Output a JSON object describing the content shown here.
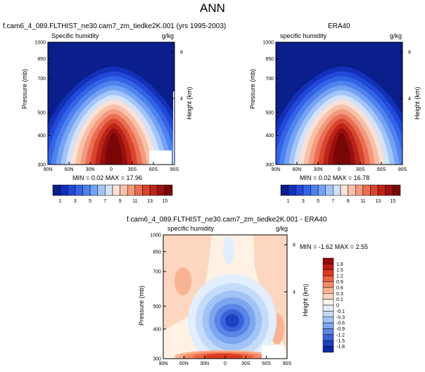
{
  "page_title": "ANN",
  "chart_data": [
    {
      "type": "heatmap",
      "title": "f.cam6_4_089.FLTHIST_ne30.cam7_zm_tiedke2K.001 (yrs 1995-2003)",
      "variable": "Specific humidity",
      "units": "g/kg",
      "stats": "MIN =  0.02  MAX = 17.96",
      "min": 0.02,
      "max": 17.96,
      "xticks": [
        "90N",
        "60N",
        "30N",
        "0",
        "30S",
        "60S",
        "90S"
      ],
      "xlim": [
        90,
        -90
      ],
      "yticks": [
        "300",
        "400",
        "500",
        "700",
        "850",
        "1000"
      ],
      "ylim": [
        1000,
        300
      ],
      "ylabel": "Pressure (mb)",
      "y2label": "Height (km)",
      "y2ticks": [
        "8",
        "4"
      ],
      "colorbar": {
        "labels": [
          "1",
          "3",
          "5",
          "7",
          "9",
          "11",
          "13",
          "15"
        ]
      }
    },
    {
      "type": "heatmap",
      "title": "ERA40",
      "variable": "specific humidity",
      "units": "g/kg",
      "stats": "MIN =  0.02  MAX = 16.78",
      "min": 0.02,
      "max": 16.78,
      "xticks": [
        "90N",
        "60N",
        "30N",
        "0",
        "30S",
        "60S",
        "90S"
      ],
      "xlim": [
        90,
        -90
      ],
      "yticks": [
        "300",
        "400",
        "500",
        "700",
        "850",
        "1000"
      ],
      "ylim": [
        1000,
        300
      ],
      "ylabel": "Pressure (mb)",
      "y2label": "Height (km)",
      "y2ticks": [
        "8",
        "4"
      ],
      "colorbar": {
        "labels": [
          "1",
          "3",
          "5",
          "7",
          "9",
          "11",
          "13",
          "15"
        ]
      }
    },
    {
      "type": "heatmap",
      "title": "f.cam6_4_089.FLTHIST_ne30.cam7_zm_tiedke2K.001 - ERA40",
      "variable": "specific humidity",
      "units": "g/kg",
      "stats": "MIN = -1.62  MAX =  2.55",
      "min": -1.62,
      "max": 2.55,
      "xticks": [
        "90N",
        "60N",
        "30N",
        "0",
        "30S",
        "60S",
        "90S"
      ],
      "xlim": [
        90,
        -90
      ],
      "yticks": [
        "300",
        "400",
        "500",
        "700",
        "850",
        "1000"
      ],
      "ylim": [
        1000,
        300
      ],
      "ylabel": "Pressure (mb)",
      "y2label": "Height (km)",
      "y2ticks": [
        "8",
        "4"
      ],
      "colorbar": {
        "labels": [
          "1.8",
          "1.5",
          "1.2",
          "0.9",
          "0.6",
          "0.3",
          "0.1",
          "0",
          "-0.1",
          "-0.3",
          "-0.6",
          "-0.9",
          "-1.2",
          "-1.5",
          "-1.8"
        ]
      }
    }
  ],
  "colors": {
    "seq": [
      "#0a1e8c",
      "#1230b8",
      "#2148d6",
      "#3464e6",
      "#4f82ef",
      "#74a2f4",
      "#a2c4f8",
      "#d2e2f9",
      "#fae0d6",
      "#f7c0a8",
      "#f39a7d",
      "#ea6e53",
      "#d8452f",
      "#bd2418",
      "#981010",
      "#7a0707"
    ],
    "diff": [
      "#940b0b",
      "#bd1a13",
      "#dc3a21",
      "#ec6440",
      "#f48c66",
      "#f8b393",
      "#fcd6bf",
      "#fff1e4",
      "#e2eefd",
      "#c4dbfa",
      "#a2c3f6",
      "#7ea6f0",
      "#5a86e6",
      "#3963d8",
      "#1e42c2",
      "#0c26a4"
    ]
  }
}
